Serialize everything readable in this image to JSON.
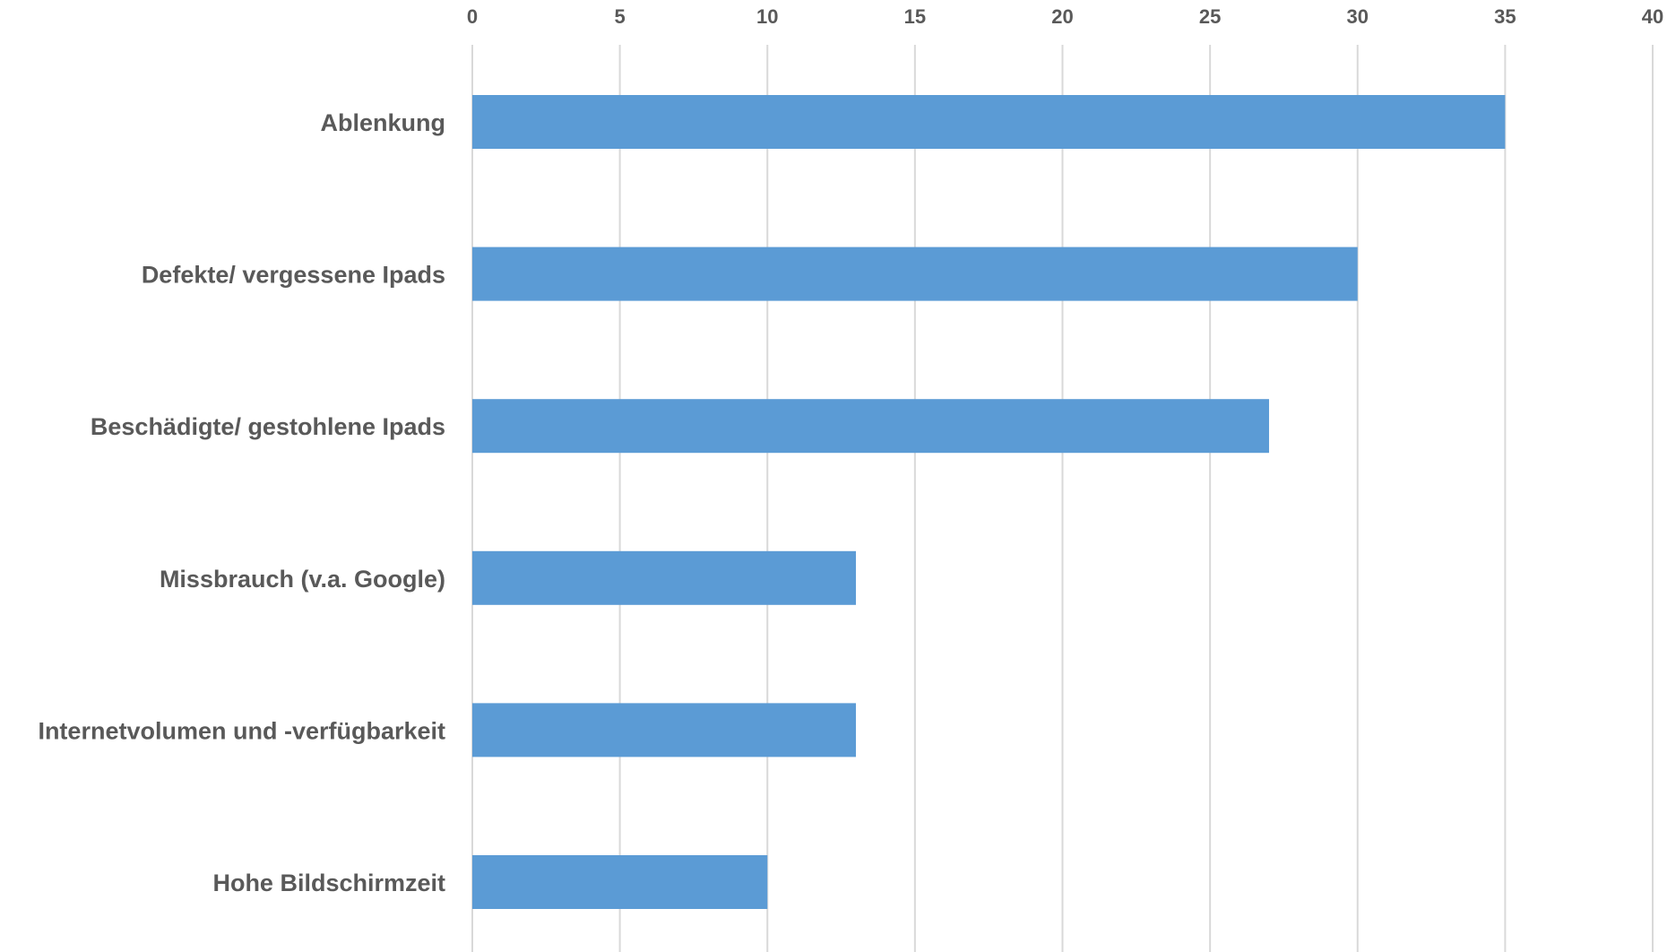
{
  "chart_data": {
    "type": "bar",
    "orientation": "horizontal",
    "categories": [
      "Ablenkung",
      "Defekte/ vergessene Ipads",
      "Beschädigte/ gestohlene Ipads",
      "Missbrauch (v.a. Google)",
      "Internetvolumen und -verfügbarkeit",
      "Hohe Bildschirmzeit"
    ],
    "values": [
      35,
      30,
      27,
      13,
      13,
      10
    ],
    "xlim": [
      0,
      40
    ],
    "x_ticks": [
      0,
      5,
      10,
      15,
      20,
      25,
      30,
      35,
      40
    ],
    "x_axis_position": "top",
    "grid": true,
    "legend": "none",
    "bar_color": "#5b9bd5",
    "grid_color": "#d9d9d9",
    "label_color": "#595959"
  }
}
